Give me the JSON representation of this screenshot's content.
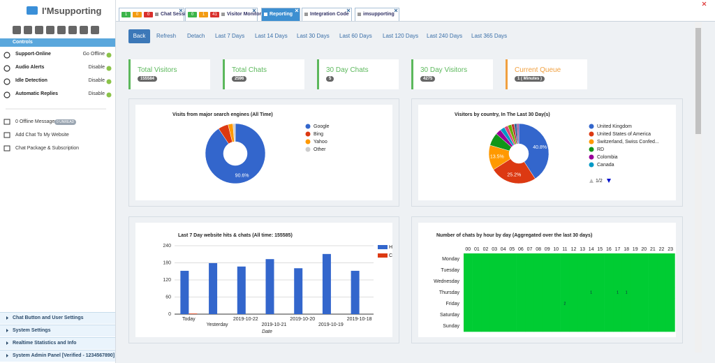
{
  "sidebar": {
    "brand": "I'Msupporting",
    "controls_title": "Controls",
    "controls": [
      {
        "label": "Support-Online",
        "action": "Go Offline"
      },
      {
        "label": "Audio Alerts",
        "action": "Disable"
      },
      {
        "label": "Idle Detection",
        "action": "Disable"
      },
      {
        "label": "Automatic Replies",
        "action": "Disable"
      }
    ],
    "links": [
      {
        "label": "0 Offline Messages",
        "badge": "0 UNREAD"
      },
      {
        "label": "Add Chat To My Website"
      },
      {
        "label": "Chat Package & Subscription"
      }
    ],
    "menu": [
      "Chat Button and User Settings",
      "System Settings",
      "Realtime Statistics and Info",
      "System Admin Panel [Verified - 1234567890]"
    ]
  },
  "tabs": [
    {
      "badges": [
        1,
        0,
        0
      ],
      "label": "Chat Sessions"
    },
    {
      "badges": [
        0,
        1,
        41
      ],
      "label": "Visitor Monitor"
    },
    {
      "label": "Reporting",
      "active": true
    },
    {
      "label": "Integration Code"
    },
    {
      "label": "imsupporting"
    }
  ],
  "toolbar": [
    "Back",
    "Refresh",
    "Detach",
    "Last 7 Days",
    "Last 14 Days",
    "Last 30 Days",
    "Last 60 Days",
    "Last 120 Days",
    "Last 240 Days",
    "Last 365 Days"
  ],
  "stats": [
    {
      "title": "Total Visitors",
      "value": 155584
    },
    {
      "title": "Total Chats",
      "value": 2596
    },
    {
      "title": "30 Day Chats",
      "value": 5
    },
    {
      "title": "30 Day Visitors",
      "value": 4275
    },
    {
      "title": "Current Queue",
      "value": "1 ( Minutes )"
    }
  ],
  "charts": {
    "search": {
      "type": "pie",
      "title": "Visits from major search engines (All Time)",
      "categories": [
        "Google",
        "Bing",
        "Yahoo",
        "Other"
      ],
      "values": [
        90.6,
        5.5,
        2.6,
        1.3
      ],
      "value_labels": [
        "90.6%",
        null,
        null,
        null
      ],
      "colors": [
        "#3366cc",
        "#dc3912",
        "#ff9900",
        "#cccccc"
      ]
    },
    "country": {
      "type": "pie",
      "title": "Visitors by country, In The Last 30 Day(s)",
      "categories": [
        "United Kingdom",
        "United States of America",
        "Switzerland, Swiss Confed...",
        "RD",
        "Colombia",
        "Canada",
        null,
        null,
        null,
        null,
        null
      ],
      "values": [
        40.8,
        25.2,
        13.5,
        7,
        3,
        2.5,
        2,
        2,
        1.5,
        1.5,
        1
      ],
      "value_labels": [
        "40.8%",
        "25.2%",
        "13.5%",
        null,
        null,
        null,
        null,
        null,
        null,
        null,
        null
      ],
      "colors": [
        "#3366cc",
        "#dc3912",
        "#ff9900",
        "#109618",
        "#990099",
        "#0099c6",
        "#dd4477",
        "#66aa00",
        "#b82e2e",
        "#316395",
        "#994499"
      ],
      "legend_page": "1/2"
    },
    "hits": {
      "type": "bar",
      "title": "Last 7 Day website hits & chats (All time: 155585)",
      "x_label": "Date",
      "categories": [
        "Today",
        "Yesterday",
        "2019-10-22",
        "2019-10-21",
        "2019-10-20",
        "2019-10-19",
        "2019-10-18"
      ],
      "series": [
        {
          "name": "H",
          "color": "#3366cc",
          "values": [
            152,
            179,
            167,
            193,
            161,
            211,
            152
          ]
        },
        {
          "name": "C",
          "color": "#dc3912",
          "values": [
            2,
            0,
            0,
            0,
            0,
            0,
            0
          ]
        }
      ],
      "ylim": [
        0,
        240
      ],
      "yticks": [
        0,
        60,
        120,
        180,
        240
      ],
      "grid": true
    },
    "heatmap": {
      "type": "heatmap",
      "title": "Number of chats by hour by day (Aggregated over the last 30 days)",
      "hours": [
        "00",
        "01",
        "02",
        "03",
        "04",
        "05",
        "06",
        "07",
        "08",
        "09",
        "10",
        "11",
        "12",
        "13",
        "14",
        "15",
        "16",
        "17",
        "18",
        "19",
        "20",
        "21",
        "22",
        "23"
      ],
      "days": [
        "Monday",
        "Tuesday",
        "Wednesday",
        "Thursday",
        "Friday",
        "Saturday",
        "Sunday"
      ],
      "color": "#00cc33",
      "cells": [
        {
          "day": 3,
          "hour": 14,
          "value": 1
        },
        {
          "day": 3,
          "hour": 17,
          "value": 1
        },
        {
          "day": 3,
          "hour": 18,
          "value": 1
        },
        {
          "day": 4,
          "hour": 11,
          "value": 2
        }
      ]
    }
  }
}
